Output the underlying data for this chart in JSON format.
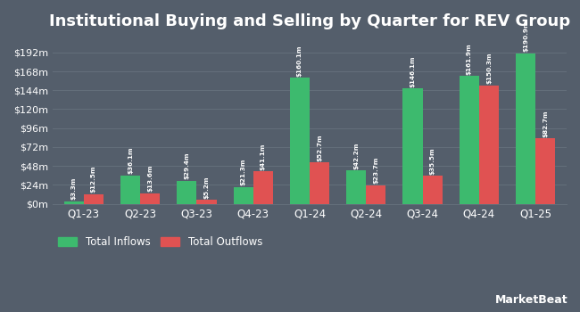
{
  "title": "Institutional Buying and Selling by Quarter for REV Group",
  "categories": [
    "Q1-23",
    "Q2-23",
    "Q3-23",
    "Q4-23",
    "Q1-24",
    "Q2-24",
    "Q3-24",
    "Q4-24",
    "Q1-25"
  ],
  "inflows": [
    3.3,
    36.1,
    29.4,
    21.3,
    160.1,
    42.2,
    146.1,
    161.9,
    190.9
  ],
  "outflows": [
    12.5,
    13.6,
    5.2,
    41.1,
    52.7,
    23.7,
    35.5,
    150.3,
    82.7
  ],
  "inflow_labels": [
    "$3.3m",
    "$36.1m",
    "$29.4m",
    "$21.3m",
    "$160.1m",
    "$42.2m",
    "$146.1m",
    "$161.9m",
    "$190.9m"
  ],
  "outflow_labels": [
    "$12.5m",
    "$13.6m",
    "$5.2m",
    "$41.1m",
    "$52.7m",
    "$23.7m",
    "$35.5m",
    "$150.3m",
    "$82.7m"
  ],
  "inflow_color": "#3dba6e",
  "outflow_color": "#e05252",
  "background_color": "#545e6b",
  "plot_bg_color": "#545e6b",
  "grid_color": "#636e7a",
  "text_color": "#ffffff",
  "xtick_color": "#a8c0cc",
  "ytick_color": "#c8d4dc",
  "ylim": [
    0,
    210
  ],
  "yticks": [
    0,
    24,
    48,
    72,
    96,
    120,
    144,
    168,
    192
  ],
  "ytick_labels": [
    "$0m",
    "$24m",
    "$48m",
    "$72m",
    "$96m",
    "$120m",
    "$144m",
    "$168m",
    "$192m"
  ],
  "legend_inflow": "Total Inflows",
  "legend_outflow": "Total Outflows",
  "bar_width": 0.35,
  "label_fontsize": 5.2,
  "title_fontsize": 13
}
